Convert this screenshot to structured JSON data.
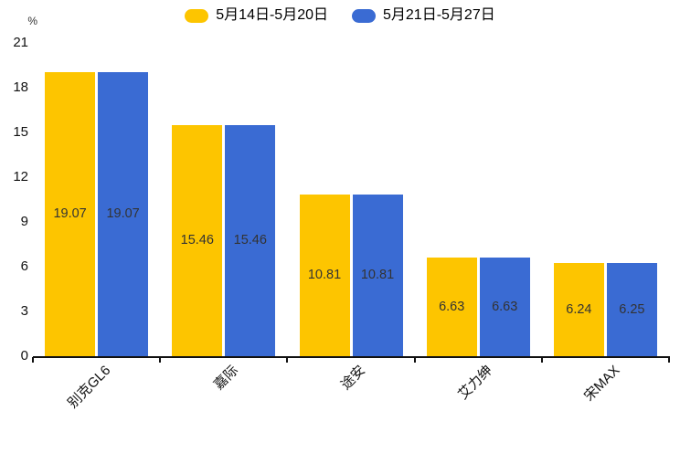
{
  "legend": {
    "items": [
      {
        "label": "5月14日-5月20日",
        "color": "#FDC500"
      },
      {
        "label": "5月21日-5月27日",
        "color": "#3A6BD3"
      }
    ]
  },
  "chart_data": {
    "type": "bar",
    "title": "",
    "categories": [
      "别克GL6",
      "嘉际",
      "途安",
      "艾力绅",
      "宋MAX"
    ],
    "series": [
      {
        "name": "5月14日-5月20日",
        "color": "#FDC500",
        "values": [
          19.07,
          15.46,
          10.81,
          6.63,
          6.24
        ]
      },
      {
        "name": "5月21日-5月27日",
        "color": "#3A6BD3",
        "values": [
          19.07,
          15.46,
          10.81,
          6.63,
          6.25
        ]
      }
    ],
    "ylabel": "%",
    "ylim": [
      0,
      21
    ],
    "yticks": [
      0,
      3,
      6,
      9,
      12,
      15,
      18,
      21
    ],
    "grid": false,
    "legend_position": "top",
    "value_label_position": "inside-center",
    "value_label_decimals": 2
  }
}
